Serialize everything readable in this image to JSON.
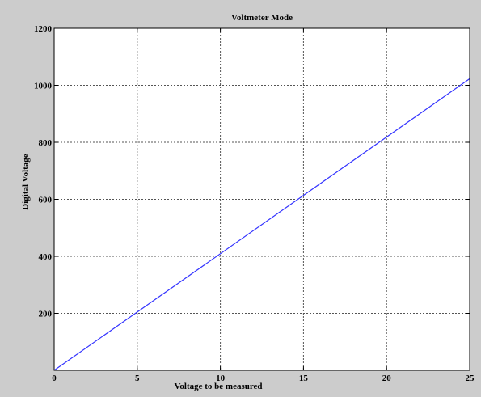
{
  "chart_data": {
    "type": "line",
    "title": "Voltmeter Mode",
    "xlabel": "Voltage to be measured",
    "ylabel": "Digital Voltage",
    "xlim": [
      0,
      25
    ],
    "ylim": [
      0,
      1200
    ],
    "xticks": [
      0,
      5,
      10,
      15,
      20,
      25
    ],
    "yticks": [
      200,
      400,
      600,
      800,
      1000,
      1200
    ],
    "grid": true,
    "series": [
      {
        "x": [
          0,
          25
        ],
        "y": [
          0,
          1023
        ],
        "color": "#3333ff"
      }
    ]
  },
  "colors": {
    "figure_background": "#cccccc",
    "axes_background": "#ffffff",
    "grid": "#555555",
    "line": "#3333ff"
  }
}
